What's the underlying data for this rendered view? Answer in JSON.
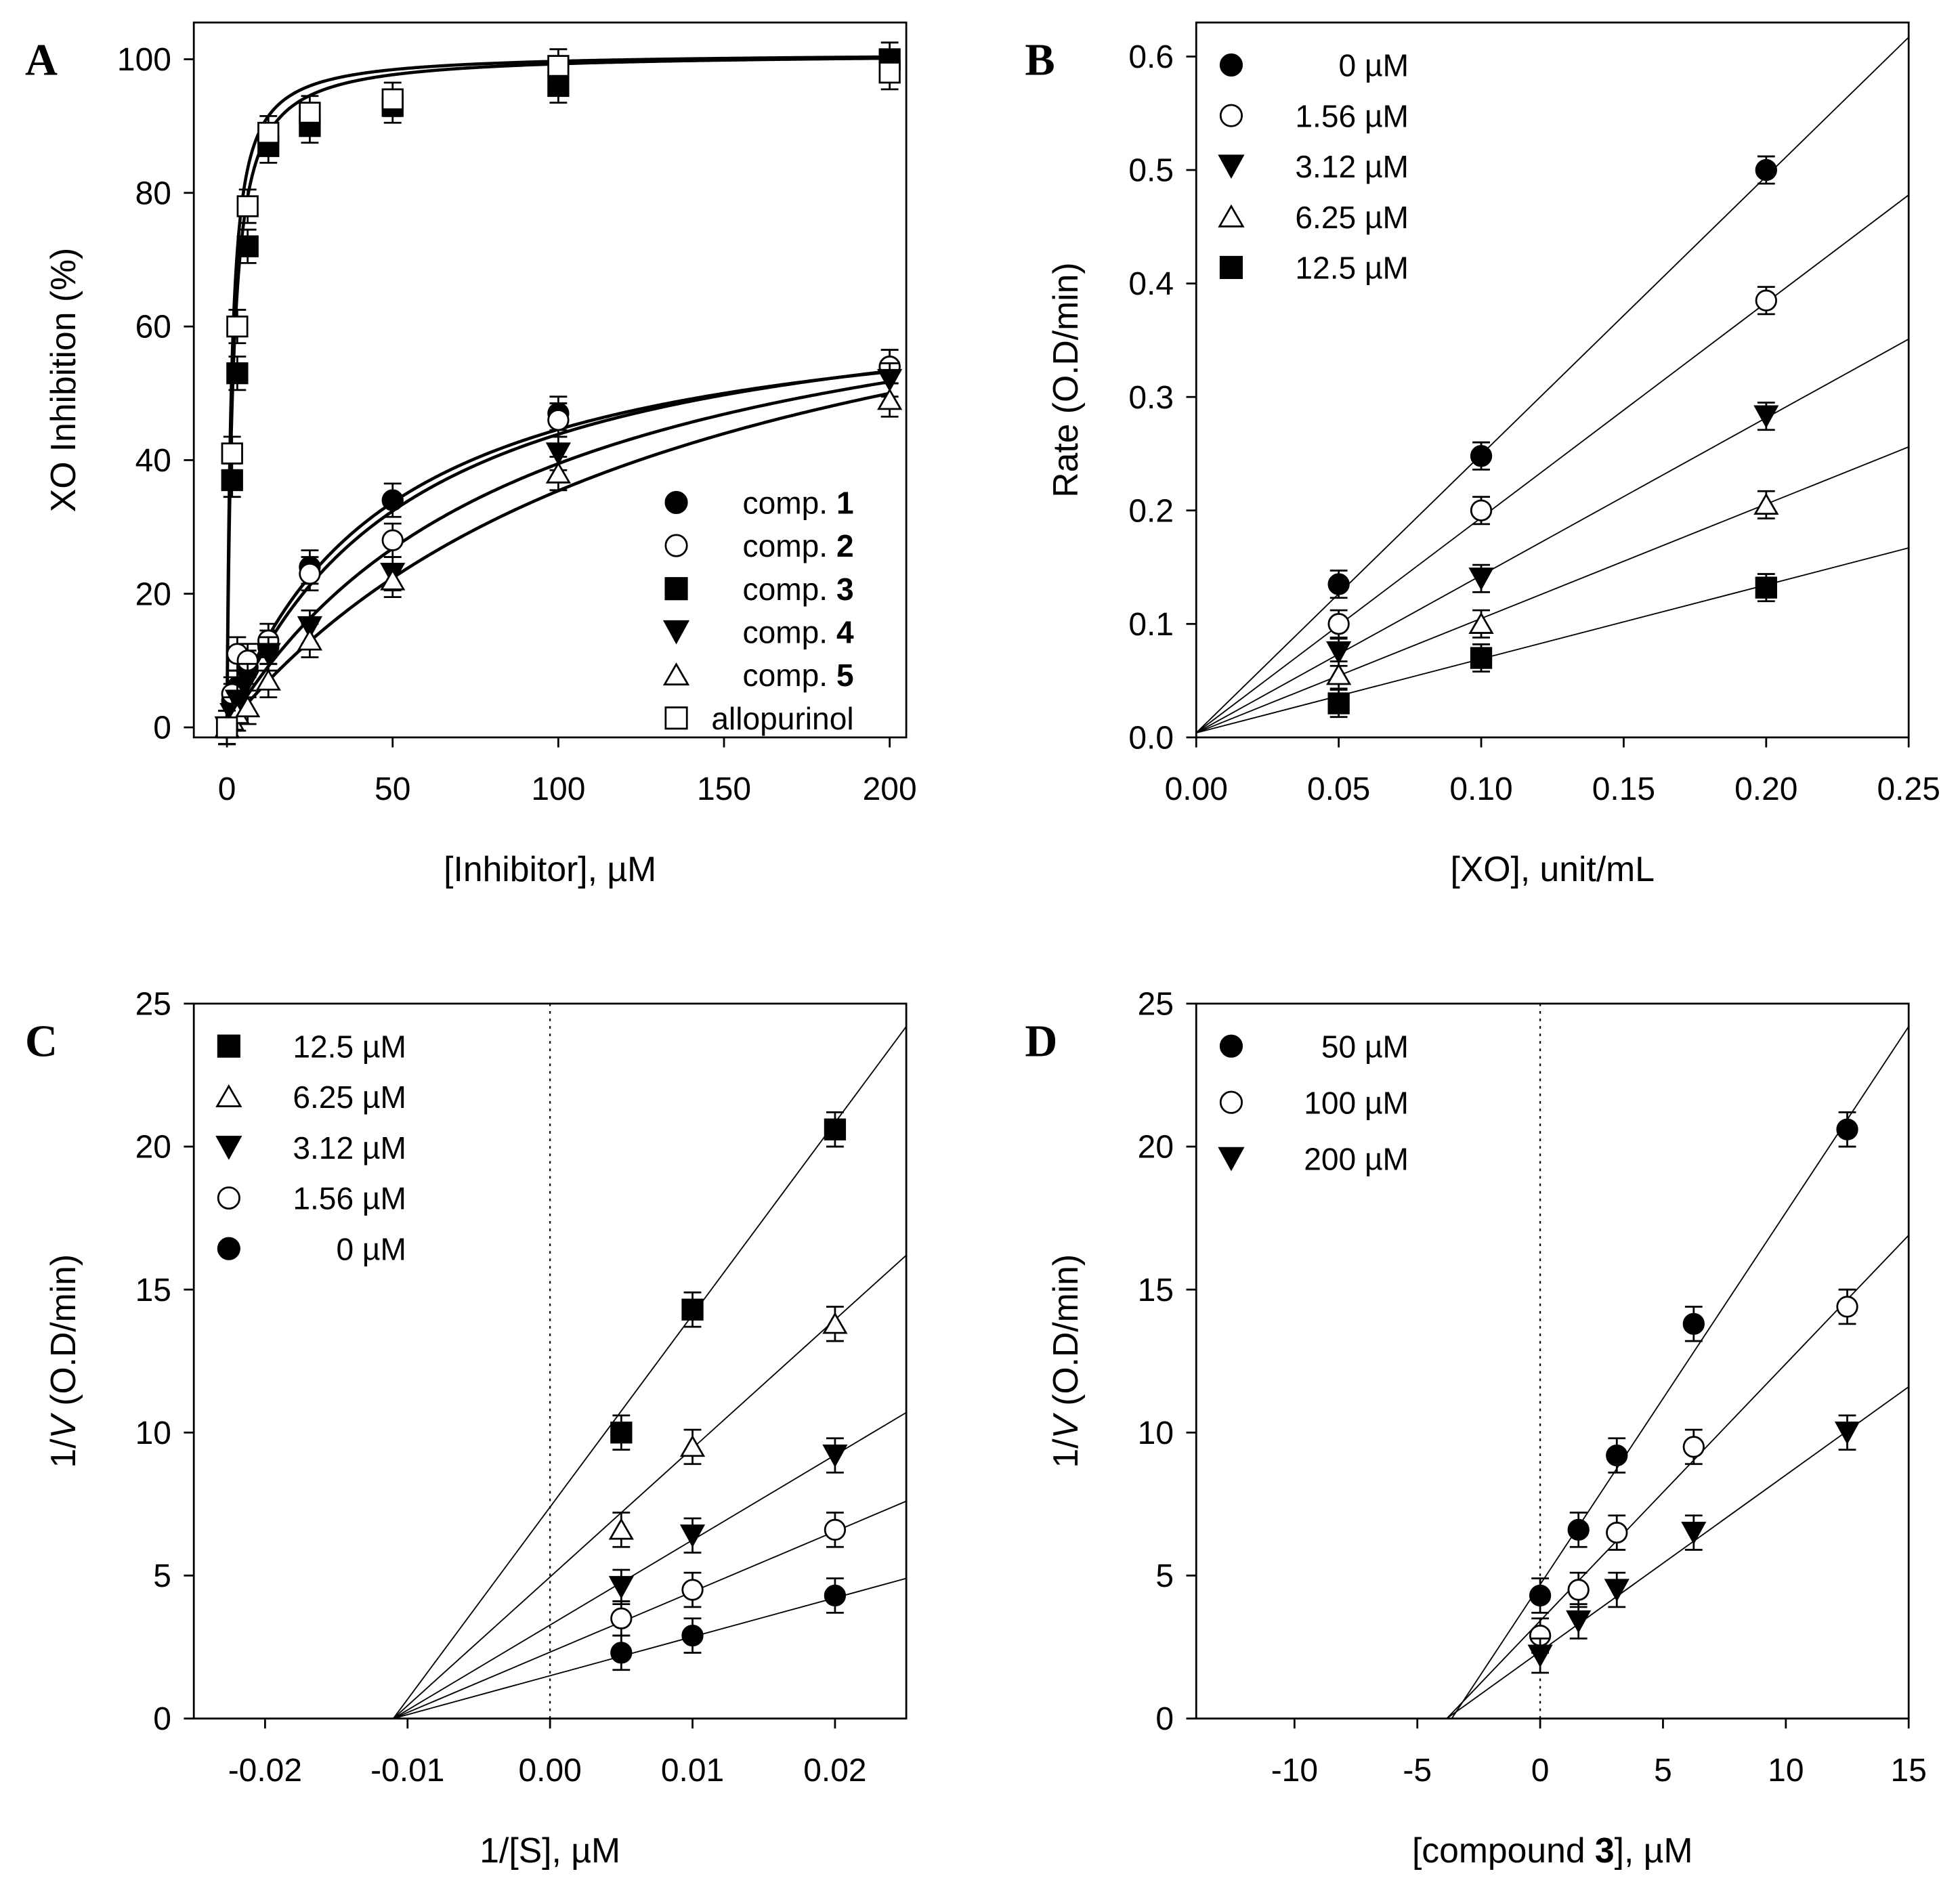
{
  "chart_data": [
    {
      "panel": "A",
      "type": "scatter",
      "xlabel": "[Inhibitor], µM",
      "ylabel": "XO Inhibition (%)",
      "xlim": [
        -10,
        205
      ],
      "ylim": [
        -1.5,
        105.5
      ],
      "xticks": [
        0,
        50,
        100,
        150,
        200
      ],
      "yticks": [
        0,
        20,
        40,
        60,
        80,
        100
      ],
      "xtick_labels": [
        "0",
        "50",
        "100",
        "150",
        "200"
      ],
      "ytick_labels": [
        "0",
        "20",
        "40",
        "60",
        "80",
        "100"
      ],
      "legend_position": "bottom-right",
      "fit": "hyperbolic",
      "error": 2.5,
      "x": [
        0,
        1.56,
        3.12,
        6.25,
        12.5,
        25,
        50,
        100,
        200
      ],
      "series": [
        {
          "name": "comp. ",
          "bold": "1",
          "marker": "circle-filled",
          "values": [
            0,
            4,
            6,
            9,
            12,
            24,
            34,
            47,
            54
          ],
          "fit_max": 66,
          "fit_k": 48
        },
        {
          "name": "comp. ",
          "bold": "2",
          "marker": "circle-open",
          "values": [
            0,
            5,
            11,
            10,
            13,
            23,
            28,
            46,
            54
          ],
          "fit_max": 68,
          "fit_k": 55
        },
        {
          "name": "comp. ",
          "bold": "3",
          "marker": "square-filled",
          "values": [
            0,
            37,
            53,
            72,
            87,
            90,
            93,
            96,
            100
          ],
          "fit_max": 101,
          "fit_k": 1.7
        },
        {
          "name": "comp. ",
          "bold": "4",
          "marker": "triangle-down-filled",
          "values": [
            0,
            2,
            4,
            7,
            11,
            15,
            23,
            41,
            52
          ],
          "fit_max": 75,
          "fit_k": 90
        },
        {
          "name": "comp. ",
          "bold": "5",
          "marker": "triangle-up-open",
          "values": [
            0,
            1,
            2,
            3,
            7,
            13,
            22,
            38,
            49
          ],
          "fit_max": 85,
          "fit_k": 140
        },
        {
          "name": "allopurinol",
          "bold": "",
          "marker": "square-open",
          "values": [
            0,
            41,
            60,
            78,
            89,
            92,
            94,
            99,
            98
          ],
          "fit_max": 101,
          "fit_k": 1.3
        }
      ]
    },
    {
      "panel": "B",
      "type": "scatter",
      "xlabel": "[XO], unit/mL",
      "ylabel": "Rate (O.D/min)",
      "xlim": [
        0,
        0.25
      ],
      "ylim": [
        0,
        0.63
      ],
      "xticks": [
        0,
        0.05,
        0.1,
        0.15,
        0.2,
        0.25
      ],
      "yticks": [
        0,
        0.1,
        0.2,
        0.3,
        0.4,
        0.5,
        0.6
      ],
      "xtick_labels": [
        "0.00",
        "0.05",
        "0.10",
        "0.15",
        "0.20",
        "0.25"
      ],
      "ytick_labels": [
        "0.0",
        "0.1",
        "0.2",
        "0.3",
        "0.4",
        "0.5",
        "0.6"
      ],
      "legend_position": "top-left",
      "fit": "line",
      "error": 0.012,
      "x": [
        0.05,
        0.1,
        0.2
      ],
      "series": [
        {
          "name": "0 µM",
          "bold": "",
          "marker": "circle-filled",
          "values": [
            0.135,
            0.248,
            0.5
          ],
          "line": [
            [
              0,
              0.004
            ],
            [
              0.25,
              0.617
            ]
          ]
        },
        {
          "name": "1.56 µM",
          "bold": "",
          "marker": "circle-open",
          "values": [
            0.1,
            0.2,
            0.385
          ],
          "line": [
            [
              0,
              0.004
            ],
            [
              0.25,
              0.478
            ]
          ]
        },
        {
          "name": "3.12 µM",
          "bold": "",
          "marker": "triangle-down-filled",
          "values": [
            0.075,
            0.14,
            0.283
          ],
          "line": [
            [
              0,
              0.004
            ],
            [
              0.25,
              0.351
            ]
          ]
        },
        {
          "name": "6.25 µM",
          "bold": "",
          "marker": "triangle-up-open",
          "values": [
            0.055,
            0.1,
            0.205
          ],
          "line": [
            [
              0,
              0.004
            ],
            [
              0.25,
              0.256
            ]
          ]
        },
        {
          "name": "12.5 µM",
          "bold": "",
          "marker": "square-filled",
          "values": [
            0.03,
            0.07,
            0.132
          ],
          "line": [
            [
              0,
              0.004
            ],
            [
              0.25,
              0.167
            ]
          ]
        }
      ]
    },
    {
      "panel": "C",
      "type": "scatter",
      "xlabel": "1/[S], µM",
      "ylabel_parts": [
        "1/",
        "V",
        " (O.D/min)"
      ],
      "xlim": [
        -0.025,
        0.025
      ],
      "ylim": [
        0,
        25
      ],
      "xticks": [
        -0.02,
        -0.01,
        0,
        0.01,
        0.02
      ],
      "yticks": [
        0,
        5,
        10,
        15,
        20,
        25
      ],
      "xtick_labels": [
        "-0.02",
        "-0.01",
        "0.00",
        "0.01",
        "0.02"
      ],
      "ytick_labels": [
        "0",
        "5",
        "10",
        "15",
        "20",
        "25"
      ],
      "legend_position": "top-left",
      "zero_line": true,
      "fit": "line",
      "error": 0.6,
      "x": [
        0.005,
        0.01,
        0.02
      ],
      "series": [
        {
          "name": "12.5 µM",
          "bold": "",
          "marker": "square-filled",
          "values": [
            10,
            14.3,
            20.6
          ],
          "line": [
            [
              -0.011,
              0
            ],
            [
              0.025,
              24.2
            ]
          ]
        },
        {
          "name": "6.25 µM",
          "bold": "",
          "marker": "triangle-up-open",
          "values": [
            6.6,
            9.5,
            13.8
          ],
          "line": [
            [
              -0.011,
              0
            ],
            [
              0.025,
              16.2
            ]
          ]
        },
        {
          "name": "3.12 µM",
          "bold": "",
          "marker": "triangle-down-filled",
          "values": [
            4.6,
            6.4,
            9.2
          ],
          "line": [
            [
              -0.011,
              0
            ],
            [
              0.025,
              10.7
            ]
          ]
        },
        {
          "name": "1.56 µM",
          "bold": "",
          "marker": "circle-open",
          "values": [
            3.5,
            4.5,
            6.6
          ],
          "line": [
            [
              -0.011,
              0
            ],
            [
              0.025,
              7.6
            ]
          ]
        },
        {
          "name": "0 µM",
          "bold": "",
          "marker": "circle-filled",
          "values": [
            2.3,
            2.9,
            4.3
          ],
          "line": [
            [
              -0.011,
              0
            ],
            [
              0.025,
              4.9
            ]
          ]
        }
      ]
    },
    {
      "panel": "D",
      "type": "scatter",
      "xlabel_parts": [
        "[compound ",
        "3",
        "], µM"
      ],
      "ylabel_parts": [
        "1/",
        "V",
        " (O.D/min)"
      ],
      "xlim": [
        -14,
        15
      ],
      "ylim": [
        0,
        25
      ],
      "xticks": [
        -10,
        -5,
        0,
        5,
        10,
        15
      ],
      "yticks": [
        0,
        5,
        10,
        15,
        20,
        25
      ],
      "xtick_labels": [
        "-10",
        "-5",
        "0",
        "5",
        "10",
        "15"
      ],
      "ytick_labels": [
        "0",
        "5",
        "10",
        "15",
        "20",
        "25"
      ],
      "legend_position": "top-left",
      "zero_line": true,
      "fit": "line",
      "error": 0.6,
      "x": [
        0,
        1.56,
        3.12,
        6.25,
        12.5
      ],
      "series": [
        {
          "name": "50 µM",
          "bold": "",
          "marker": "circle-filled",
          "values": [
            4.3,
            6.6,
            9.2,
            13.8,
            20.6
          ],
          "line": [
            [
              -3.6,
              0
            ],
            [
              15,
              24.2
            ]
          ]
        },
        {
          "name": "100 µM",
          "bold": "",
          "marker": "circle-open",
          "values": [
            2.9,
            4.5,
            6.5,
            9.5,
            14.4
          ],
          "line": [
            [
              -3.8,
              0
            ],
            [
              15,
              16.9
            ]
          ]
        },
        {
          "name": "200 µM",
          "bold": "",
          "marker": "triangle-down-filled",
          "values": [
            2.2,
            3.4,
            4.5,
            6.5,
            10.0
          ],
          "line": [
            [
              -3.8,
              0
            ],
            [
              15,
              11.6
            ]
          ]
        }
      ]
    }
  ]
}
